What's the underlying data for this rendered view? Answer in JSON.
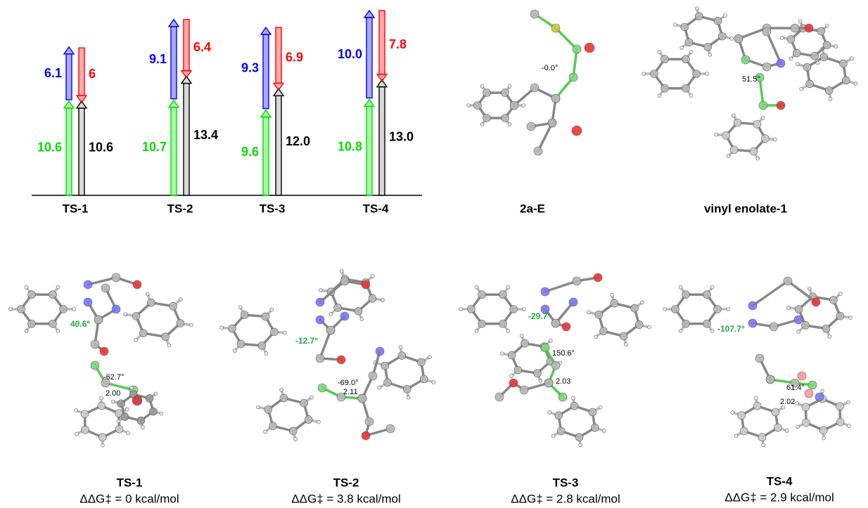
{
  "chart_data": {
    "type": "arrow",
    "categories": [
      "TS-1",
      "TS-2",
      "TS-3",
      "TS-4"
    ],
    "series": [
      {
        "color": "#00dd00",
        "values": [
          10.6,
          10.7,
          9.6,
          10.8
        ]
      },
      {
        "color": "#0000ff",
        "values": [
          6.1,
          9.1,
          9.3,
          10.0
        ],
        "value_labels": [
          "6.1",
          "9.1",
          "9.3",
          "10.0"
        ]
      },
      {
        "color": "#000000",
        "values": [
          10.6,
          13.4,
          12.0,
          13.0
        ],
        "value_labels": [
          "10.6",
          "13.4",
          "12.0",
          "13.0"
        ]
      },
      {
        "color": "#ff0000",
        "values": [
          6.0,
          6.4,
          6.9,
          7.8
        ]
      }
    ]
  },
  "structures": [
    {
      "label": "2a-E",
      "annotations": [
        "-0.0°"
      ]
    },
    {
      "label": "vinyl enolate-1",
      "annotations": [
        "51.5°"
      ]
    },
    {
      "label": "TS-1",
      "energy": "ΔΔG‡ = 0 kcal/mol",
      "annotations": [
        "40.6º",
        "-62.7°",
        "2.00"
      ]
    },
    {
      "label": "TS-2",
      "energy": "ΔΔG‡ = 3.8 kcal/mol",
      "annotations": [
        "-12.7°",
        "-69.0°",
        "2.11"
      ]
    },
    {
      "label": "TS-3",
      "energy": "ΔΔG‡ = 2.8 kcal/mol",
      "annotations": [
        "-29.7°",
        "150.6°",
        "2.03"
      ]
    },
    {
      "label": "TS-4",
      "energy": "ΔΔG‡ = 2.9 kcal/mol",
      "annotations": [
        "-107.7°",
        "61.4°",
        "2.02"
      ]
    }
  ]
}
